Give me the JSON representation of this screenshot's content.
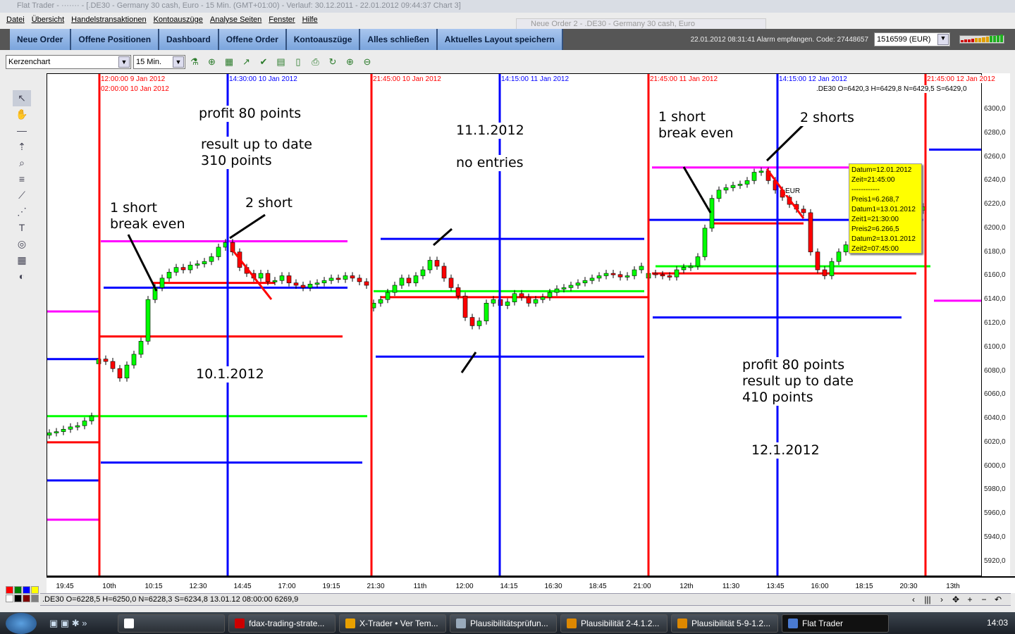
{
  "window": {
    "title": "Flat Trader - ······· - [.DE30 - Germany 30 cash, Euro - 15 Min. (GMT+01:00)  - Verlauf: 30.12.2011 - 22.01.2012 09:44:37  Chart 3]"
  },
  "menu": [
    "Datei",
    "Übersicht",
    "Handelstransaktionen",
    "Kontoauszüge",
    "Analyse Seiten",
    "Fenster",
    "Hilfe"
  ],
  "nav": [
    "Neue Order",
    "Offene Positionen",
    "Dashboard",
    "Offene Order",
    "Kontoauszüge",
    "Alles schließen",
    "Aktuelles Layout speichern"
  ],
  "floating_window": {
    "title": "Neue Order 2 - .DE30 - Germany 30 cash, Euro"
  },
  "alarm": "22.01.2012 08:31:41 Alarm empfangen. Code: 27448657",
  "account": "1516599 (EUR)",
  "signal_strength": {
    "bars": 12,
    "colors": [
      "#d00000",
      "#d00000",
      "#d00000",
      "#d00000",
      "#e0a000",
      "#e0a000",
      "#e0a000",
      "#e0a000",
      "#20b020",
      "#20b020",
      "#20b020",
      "#20b020"
    ]
  },
  "toolbar": {
    "chart_type": "Kerzenchart",
    "interval": "15 Min.",
    "icons": [
      "indicator-icon",
      "add-indicator-icon",
      "grid-icon",
      "chart-line-icon",
      "check-chart-icon",
      "template-icon",
      "document-icon",
      "print-icon",
      "refresh-icon",
      "add-chart-icon",
      "remove-chart-icon"
    ]
  },
  "left_tools": [
    "cursor-icon",
    "hand-icon",
    "line-icon",
    "arrow-icon",
    "zoom-icon",
    "fibonacci-icon",
    "trendline-icon",
    "pitchfork-icon",
    "text-icon",
    "cycle-icon",
    "table-icon",
    "eraser-icon"
  ],
  "chart_header": {
    "ohlc": ".DE30 O=6420,3 H=6429,8 N=6429,5 S=6429,0"
  },
  "vertical_lines": [
    {
      "label": "12:00:00 9 Jan 2012",
      "color": "#ff0000"
    },
    {
      "label": "02:00:00 10 Jan 2012",
      "color": "#ff0000"
    },
    {
      "label": "14:30:00 10 Jan 2012",
      "color": "#0000ff"
    },
    {
      "label": "21:45:00 10 Jan 2012",
      "color": "#ff0000"
    },
    {
      "label": "14:15:00 11 Jan 2012",
      "color": "#0000ff"
    },
    {
      "label": "21:45:00 11 Jan 2012",
      "color": "#ff0000"
    },
    {
      "label": "14:15:00 12 Jan 2012",
      "color": "#0000ff"
    },
    {
      "label": "21:45:00 12 Jan 2012",
      "color": "#ff0000"
    }
  ],
  "annotations": {
    "a1": "profit 80 points",
    "a2": "result up to date",
    "a3": "310 points",
    "a4": "1 short",
    "a5": "break even",
    "a6": "2 short",
    "a7": "10.1.2012",
    "a8": "11.1.2012",
    "a9": "no entries",
    "a10": "1 short",
    "a11": "break even",
    "a12": "2 shorts",
    "a13": "profit 80 points",
    "a14": "result up to date",
    "a15": "410 points",
    "a16": "12.1.2012",
    "a17": "EUR"
  },
  "tooltip": [
    "Datum=12.01.2012",
    "Zeit=21:45:00",
    "------------",
    "Preis1=6.268,7",
    "Datum1=13.01.2012",
    "Zeit1=21:30:00",
    "Preis2=6.266,5",
    "Datum2=13.01.2012",
    "Zeit2=07:45:00"
  ],
  "chart_data": {
    "type": "candlestick",
    "symbol": ".DE30",
    "interval": "15 Min.",
    "ylim": [
      5910,
      6320
    ],
    "y_ticks": [
      "6300,0",
      "6280,0",
      "6260,0",
      "6240,0",
      "6220,0",
      "6200,0",
      "6180,0",
      "6160,0",
      "6140,0",
      "6120,0",
      "6100,0",
      "6080,0",
      "6060,0",
      "6040,0",
      "6020,0",
      "6000,0",
      "5980,0",
      "5960,0",
      "5940,0",
      "5920,0"
    ],
    "x_ticks": [
      "19:45",
      "10th",
      "10:15",
      "12:30",
      "14:45",
      "17:00",
      "19:15",
      "21:30",
      "11th",
      "12:00",
      "14:15",
      "16:30",
      "18:45",
      "21:00",
      "12th",
      "11:30",
      "13:45",
      "16:00",
      "18:15",
      "20:30",
      "13th"
    ],
    "closes": [
      6028,
      6029,
      6031,
      6033,
      6034,
      6038,
      6042,
      6090,
      6088,
      6082,
      6074,
      6085,
      6094,
      6105,
      6140,
      6150,
      6158,
      6163,
      6167,
      6165,
      6169,
      6170,
      6172,
      6176,
      6184,
      6188,
      6180,
      6167,
      6162,
      6158,
      6162,
      6155,
      6156,
      6160,
      6154,
      6152,
      6150,
      6153,
      6154,
      6156,
      6158,
      6157,
      6160,
      6158,
      6155,
      6152,
      6137,
      6140,
      6146,
      6152,
      6158,
      6154,
      6160,
      6165,
      6173,
      6168,
      6158,
      6150,
      6143,
      6125,
      6118,
      6122,
      6137,
      6140,
      6135,
      6138,
      6145,
      6142,
      6137,
      6140,
      6142,
      6146,
      6149,
      6150,
      6152,
      6154,
      6156,
      6158,
      6160,
      6162,
      6161,
      6159,
      6160,
      6165,
      6168,
      6162,
      6161,
      6160,
      6159,
      6165,
      6167,
      6168,
      6176,
      6200,
      6225,
      6232,
      6234,
      6236,
      6237,
      6240,
      6247,
      6248,
      6240,
      6232,
      6226,
      6220,
      6216,
      6213,
      6180,
      6165,
      6160,
      6172,
      6180,
      6186,
      6188,
      6189,
      6191,
      6193,
      6196,
      6199,
      6203,
      6210,
      6213,
      6215,
      6218
    ],
    "up_color": "#00ff00",
    "down_color": "#ff0000",
    "drawn_levels": [
      {
        "color": "#ff00ff",
        "price": 6130
      },
      {
        "color": "#ff00ff",
        "price": 5955
      },
      {
        "color": "#ff00ff",
        "price": 6189
      },
      {
        "color": "#ff00ff",
        "price": 6251
      },
      {
        "color": "#ff00ff",
        "price": 6139
      },
      {
        "color": "#0000ff",
        "price": 6090
      },
      {
        "color": "#0000ff",
        "price": 5988
      },
      {
        "color": "#0000ff",
        "price": 6150
      },
      {
        "color": "#0000ff",
        "price": 6003
      },
      {
        "color": "#0000ff",
        "price": 6191
      },
      {
        "color": "#0000ff",
        "price": 6092
      },
      {
        "color": "#0000ff",
        "price": 6207
      },
      {
        "color": "#0000ff",
        "price": 6125
      },
      {
        "color": "#0000ff",
        "price": 6266
      },
      {
        "color": "#ff0000",
        "price": 6020
      },
      {
        "color": "#ff0000",
        "price": 6109
      },
      {
        "color": "#ff0000",
        "price": 6154
      },
      {
        "color": "#ff0000",
        "price": 6142
      },
      {
        "color": "#ff0000",
        "price": 6204
      },
      {
        "color": "#ff0000",
        "price": 6162
      },
      {
        "color": "#00ff00",
        "price": 6042
      },
      {
        "color": "#00ff00",
        "price": 6147
      },
      {
        "color": "#00ff00",
        "price": 6168
      }
    ]
  },
  "status": {
    "text": ".DE30 O=6228,5 H=6250,0 N=6228,3 S=6234,8   13.01.12 08:00:00 6269,9"
  },
  "palette": [
    "#ff0000",
    "#008000",
    "#0000ff",
    "#ffff00",
    "#ffffff",
    "#000000",
    "#800000",
    "#808080"
  ],
  "nav_controls": [
    "‹",
    "|||",
    "›",
    "✥",
    "+",
    "−",
    "↶"
  ],
  "taskbar": {
    "items": [
      "",
      "fdax-trading-strate...",
      "X-Trader • Ver Tem...",
      "Plausibilitätsprüfun...",
      "Plausibilität 2-4.1.2...",
      "Plausibilität 5-9-1.2...",
      "Flat Trader"
    ],
    "clock": "14:03"
  }
}
